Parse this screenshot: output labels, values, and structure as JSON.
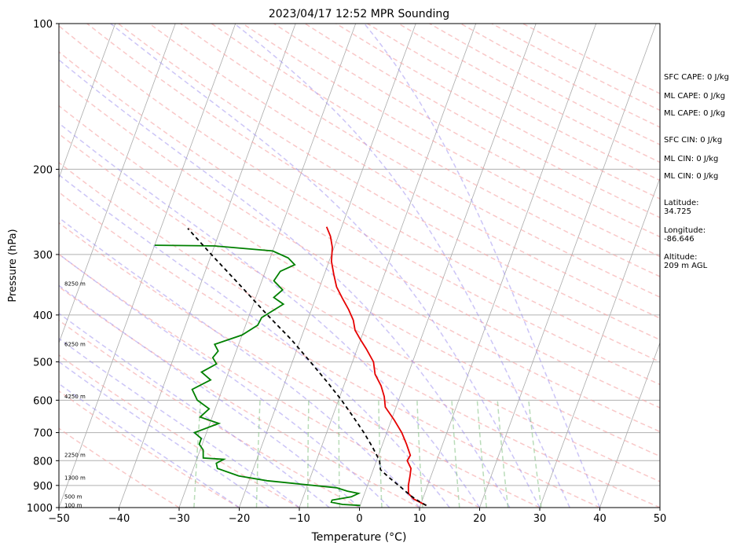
{
  "chart_data": {
    "type": "line",
    "subtype": "skew-T log-P sounding",
    "title": "2023/04/17 12:52 MPR Sounding",
    "xlabel": "Temperature (°C)",
    "ylabel": "Pressure (hPa)",
    "xlim": [
      -50,
      50
    ],
    "ylim": [
      1000,
      100
    ],
    "y_scale": "log",
    "grid": true,
    "x_ticks": [
      "−50",
      "−40",
      "−30",
      "−20",
      "−10",
      "0",
      "10",
      "20",
      "30",
      "40",
      "50"
    ],
    "y_ticks": [
      "100",
      "200",
      "300",
      "400",
      "500",
      "600",
      "700",
      "800",
      "900",
      "1000"
    ],
    "height_labels": [
      {
        "p": 990,
        "text": "100 m"
      },
      {
        "p": 950,
        "text": "500 m"
      },
      {
        "p": 870,
        "text": "1300 m"
      },
      {
        "p": 780,
        "text": "2250 m"
      },
      {
        "p": 590,
        "text": "4250 m"
      },
      {
        "p": 460,
        "text": "6250 m"
      },
      {
        "p": 345,
        "text": "8250 m"
      }
    ],
    "series": [
      {
        "role": "temperature",
        "color": "#e60000",
        "points": [
          [
            11.0,
            990
          ],
          [
            8.5,
            960
          ],
          [
            7.3,
            935
          ],
          [
            6.8,
            900
          ],
          [
            6.5,
            860
          ],
          [
            6.2,
            830
          ],
          [
            5.1,
            800
          ],
          [
            5.3,
            780
          ],
          [
            4.0,
            740
          ],
          [
            2.5,
            700
          ],
          [
            0.5,
            660
          ],
          [
            -1.8,
            620
          ],
          [
            -2.6,
            590
          ],
          [
            -3.8,
            560
          ],
          [
            -5.5,
            530
          ],
          [
            -6.5,
            500
          ],
          [
            -8.5,
            470
          ],
          [
            -10.0,
            450
          ],
          [
            -11.5,
            430
          ],
          [
            -12.4,
            410
          ],
          [
            -13.8,
            390
          ],
          [
            -15.5,
            370
          ],
          [
            -17.2,
            350
          ],
          [
            -18.4,
            330
          ],
          [
            -19.6,
            310
          ],
          [
            -20.3,
            290
          ],
          [
            -21.3,
            275
          ],
          [
            -22.5,
            263
          ]
        ]
      },
      {
        "role": "dewpoint",
        "color": "#008000",
        "points": [
          [
            0.0,
            990
          ],
          [
            -3.0,
            985
          ],
          [
            -5.0,
            975
          ],
          [
            -5.0,
            965
          ],
          [
            -2.0,
            950
          ],
          [
            -1.0,
            935
          ],
          [
            -3.0,
            925
          ],
          [
            -5.0,
            910
          ],
          [
            -17.0,
            880
          ],
          [
            -22.0,
            860
          ],
          [
            -26.0,
            830
          ],
          [
            -26.5,
            810
          ],
          [
            -25.5,
            795
          ],
          [
            -29.0,
            790
          ],
          [
            -29.5,
            760
          ],
          [
            -30.5,
            740
          ],
          [
            -30.5,
            720
          ],
          [
            -32.0,
            700
          ],
          [
            -28.5,
            670
          ],
          [
            -32.0,
            650
          ],
          [
            -31.0,
            625
          ],
          [
            -33.5,
            600
          ],
          [
            -35.0,
            570
          ],
          [
            -32.5,
            545
          ],
          [
            -34.5,
            525
          ],
          [
            -32.5,
            505
          ],
          [
            -33.5,
            490
          ],
          [
            -33.0,
            475
          ],
          [
            -34.0,
            460
          ],
          [
            -30.0,
            440
          ],
          [
            -28.0,
            420
          ],
          [
            -27.8,
            405
          ],
          [
            -25.0,
            380
          ],
          [
            -27.0,
            368
          ],
          [
            -26.0,
            355
          ],
          [
            -28.0,
            340
          ],
          [
            -27.5,
            325
          ],
          [
            -25.5,
            315
          ],
          [
            -27.0,
            305
          ],
          [
            -30.0,
            295
          ],
          [
            -40.0,
            288
          ],
          [
            -50.0,
            287
          ]
        ]
      },
      {
        "role": "parcel",
        "color": "#000000",
        "dashed": true,
        "points": [
          [
            11.0,
            990
          ],
          [
            9.5,
            970
          ],
          [
            7.8,
            945
          ],
          [
            5.8,
            910
          ],
          [
            3.3,
            870
          ],
          [
            1.2,
            835
          ],
          [
            0.5,
            800
          ],
          [
            -1.5,
            750
          ],
          [
            -3.8,
            700
          ],
          [
            -6.5,
            650
          ],
          [
            -9.5,
            600
          ],
          [
            -13.0,
            550
          ],
          [
            -17.0,
            500
          ],
          [
            -21.5,
            450
          ],
          [
            -27.0,
            400
          ],
          [
            -33.0,
            350
          ],
          [
            -40.0,
            300
          ],
          [
            -45.5,
            265
          ]
        ]
      }
    ]
  },
  "indices": {
    "sfc_cape": "SFC CAPE: 0 J/kg",
    "ml_cape_1": "ML CAPE: 0 J/kg",
    "ml_cape_2": "ML CAPE: 0 J/kg",
    "sfc_cin": "SFC CIN: 0 J/kg",
    "ml_cin_1": "ML CIN: 0 J/kg",
    "ml_cin_2": "ML CIN: 0 J/kg"
  },
  "location": {
    "latitude": "Latitude:\n34.725",
    "longitude": "Longitude:\n-86.646",
    "altitude": "Altitude:\n209 m AGL"
  }
}
